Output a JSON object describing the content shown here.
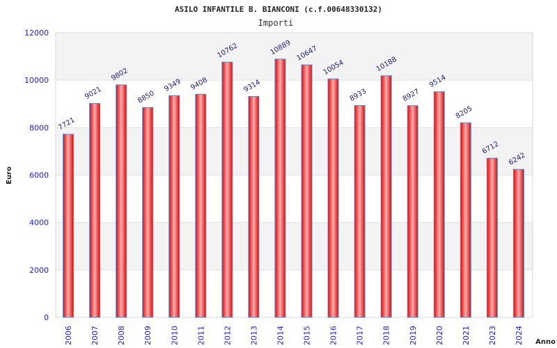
{
  "chart_data": {
    "type": "bar",
    "title": "ASILO INFANTILE B. BIANCONI (c.f.00648330132)",
    "subtitle": "Importi",
    "xlabel": "Anno",
    "ylabel": "Euro",
    "ylim": [
      0,
      12000
    ],
    "yticks": [
      0,
      2000,
      4000,
      6000,
      8000,
      10000,
      12000
    ],
    "categories": [
      "2006",
      "2007",
      "2008",
      "2009",
      "2010",
      "2011",
      "2012",
      "2013",
      "2014",
      "2015",
      "2016",
      "2017",
      "2018",
      "2019",
      "2020",
      "2021",
      "2023",
      "2024"
    ],
    "values": [
      7721,
      9021,
      9802,
      8850,
      9349,
      9408,
      10762,
      9314,
      10889,
      10647,
      10054,
      8933,
      10188,
      8927,
      9514,
      8205,
      6712,
      6242
    ],
    "grid": true,
    "colors": {
      "bar": "#ee1111",
      "bar_edge": "#4a90e2",
      "tick": "#1a1aff",
      "label": "#1a1a8a",
      "band": "#f3f3f3"
    }
  }
}
